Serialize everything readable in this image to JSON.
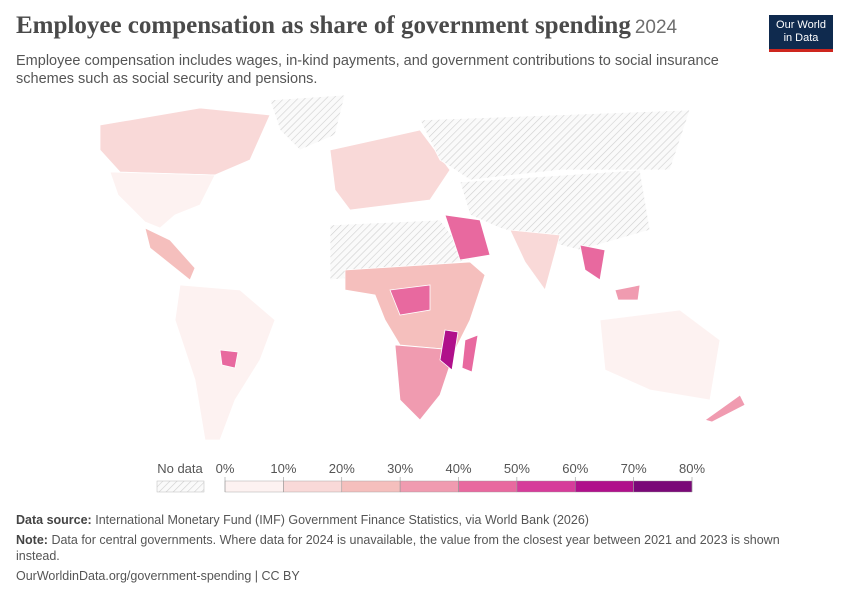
{
  "header": {
    "title": "Employee compensation as share of government spending",
    "year": "2024",
    "subtitle": "Employee compensation includes wages, in-kind payments, and government contributions to social insurance schemes such as social security and pensions."
  },
  "logo": {
    "line1": "Our World",
    "line2": "in Data"
  },
  "legend": {
    "no_data_label": "No data",
    "ticks": [
      {
        "value": 0,
        "label": "0%"
      },
      {
        "value": 10,
        "label": "10%"
      },
      {
        "value": 20,
        "label": "20%"
      },
      {
        "value": 30,
        "label": "30%"
      },
      {
        "value": 40,
        "label": "40%"
      },
      {
        "value": 50,
        "label": "50%"
      },
      {
        "value": 60,
        "label": "60%"
      },
      {
        "value": 70,
        "label": "70%"
      },
      {
        "value": 80,
        "label": "80%"
      }
    ],
    "colors": [
      "#fdf2f1",
      "#f9d9d8",
      "#f5bfbd",
      "#f09bb0",
      "#e8699f",
      "#d63c9a",
      "#b0108b",
      "#7a0878"
    ]
  },
  "footer": {
    "source_label": "Data source:",
    "source": "International Monetary Fund (IMF) Government Finance Statistics, via World Bank (2026)",
    "note_label": "Note:",
    "note": "Data for central governments. Where data for 2024 is unavailable, the value from the closest year between 2021 and 2023 is shown instead.",
    "url": "OurWorldinData.org/government-spending | CC BY"
  }
}
